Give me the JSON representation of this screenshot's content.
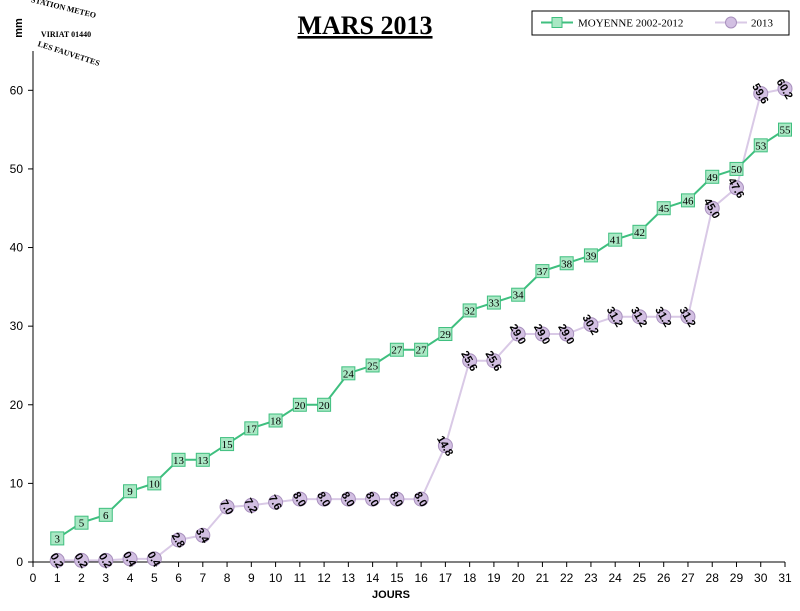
{
  "logo": {
    "line1": "STATION METEO",
    "line2": "VIRIAT 01440",
    "line3": "LES FAUVETTES"
  },
  "chart_data": {
    "type": "line",
    "title": "MARS 2013",
    "xlabel": "JOURS",
    "ylabel": "mm",
    "xlim": [
      0,
      31
    ],
    "ylim": [
      0,
      65
    ],
    "x_ticks": [
      0,
      1,
      2,
      3,
      4,
      5,
      6,
      7,
      8,
      9,
      10,
      11,
      12,
      13,
      14,
      15,
      16,
      17,
      18,
      19,
      20,
      21,
      22,
      23,
      24,
      25,
      26,
      27,
      28,
      29,
      30,
      31
    ],
    "y_ticks": [
      0,
      10,
      20,
      30,
      40,
      50,
      60
    ],
    "grid": false,
    "legend_position": "top-right",
    "x": [
      1,
      2,
      3,
      4,
      5,
      6,
      7,
      8,
      9,
      10,
      11,
      12,
      13,
      14,
      15,
      16,
      17,
      18,
      19,
      20,
      21,
      22,
      23,
      24,
      25,
      26,
      27,
      28,
      29,
      30,
      31
    ],
    "series": [
      {
        "name": "MOYENNE 2002-2012",
        "color": "#3fbf7f",
        "marker": "square",
        "marker_fill": "#a9e8c4",
        "values": [
          3,
          5,
          6,
          9,
          10,
          13,
          13,
          15,
          17,
          18,
          20,
          20,
          24,
          25,
          27,
          27,
          29,
          32,
          33,
          34,
          37,
          38,
          39,
          41,
          42,
          45,
          46,
          49,
          50,
          53,
          55
        ],
        "labels": [
          "3",
          "5",
          "6",
          "9",
          "10",
          "13",
          "13",
          "15",
          "17",
          "18",
          "20",
          "20",
          "24",
          "25",
          "27",
          "27",
          "29",
          "32",
          "33",
          "34",
          "37",
          "38",
          "39",
          "41",
          "42",
          "45",
          "46",
          "49",
          "50",
          "53",
          "55"
        ]
      },
      {
        "name": "2013",
        "color": "#d9c9e6",
        "marker": "circle",
        "marker_fill": "#d2bfe2",
        "values": [
          0.2,
          0.2,
          0.2,
          0.4,
          0.4,
          2.8,
          3.4,
          7.0,
          7.2,
          7.6,
          8.0,
          8.0,
          8.0,
          8.0,
          8.0,
          8.0,
          14.8,
          25.6,
          25.6,
          29.0,
          29.0,
          29.0,
          30.2,
          31.2,
          31.2,
          31.2,
          31.2,
          45.0,
          47.6,
          59.6,
          60.2
        ],
        "labels": [
          "0.2",
          "0.2",
          "0.2",
          "0.4",
          "0.4",
          "2.8",
          "3.4",
          "7.0",
          "7.2",
          "7.6",
          "8.0",
          "8.0",
          "8.0",
          "8.0",
          "8.0",
          "8.0",
          "14.8",
          "25.6",
          "25.6",
          "29.0",
          "29.0",
          "29.0",
          "30.2",
          "31.2",
          "31.2",
          "31.2",
          "31.2",
          "45.0",
          "47.6",
          "59.6",
          "60.2"
        ]
      }
    ]
  }
}
